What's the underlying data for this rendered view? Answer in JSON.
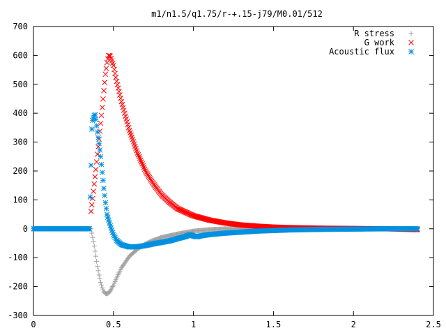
{
  "chart_data": {
    "type": "scatter",
    "title": "m1/n1.5/q1.75/r-+.15-j79/M0.01/512",
    "xlabel": "",
    "ylabel": "",
    "xlim": [
      0,
      2.5
    ],
    "ylim": [
      -300,
      700
    ],
    "x_ticks": [
      "0",
      "0.5",
      "1",
      "1.5",
      "2",
      "2.5"
    ],
    "y_ticks": [
      "-300",
      "-200",
      "-100",
      "0",
      "100",
      "200",
      "300",
      "400",
      "500",
      "600",
      "700"
    ],
    "legend_position": "top-right",
    "grid": false,
    "series": [
      {
        "name": "R stress",
        "color": "#a0a0a0",
        "marker": "plus",
        "x": [
          0.0,
          0.1,
          0.2,
          0.3,
          0.36,
          0.37,
          0.38,
          0.39,
          0.4,
          0.41,
          0.42,
          0.43,
          0.44,
          0.45,
          0.46,
          0.47,
          0.48,
          0.5,
          0.52,
          0.55,
          0.6,
          0.65,
          0.7,
          0.75,
          0.8,
          0.9,
          1.0,
          1.1,
          1.2,
          1.4,
          1.6,
          1.8,
          2.0,
          2.2,
          2.4
        ],
        "values": [
          0,
          0,
          0,
          0,
          0,
          -30,
          -60,
          -95,
          -130,
          -160,
          -185,
          -205,
          -218,
          -224,
          -225,
          -222,
          -215,
          -195,
          -170,
          -135,
          -95,
          -70,
          -52,
          -40,
          -30,
          -18,
          -8,
          -3,
          0,
          0,
          0,
          0,
          0,
          0,
          0
        ]
      },
      {
        "name": "G work",
        "color": "#ff0000",
        "marker": "x",
        "x": [
          0.36,
          0.37,
          0.38,
          0.39,
          0.4,
          0.41,
          0.42,
          0.43,
          0.44,
          0.45,
          0.46,
          0.47,
          0.48,
          0.5,
          0.52,
          0.55,
          0.6,
          0.65,
          0.7,
          0.75,
          0.8,
          0.85,
          0.9,
          1.0,
          1.1,
          1.2,
          1.3,
          1.4,
          1.5,
          1.6,
          1.8,
          2.0,
          2.2,
          2.4
        ],
        "values": [
          60,
          105,
          155,
          205,
          258,
          310,
          365,
          420,
          478,
          535,
          575,
          600,
          598,
          565,
          510,
          440,
          340,
          262,
          200,
          155,
          118,
          92,
          70,
          45,
          30,
          20,
          13,
          9,
          6,
          4,
          2,
          1,
          0,
          -3
        ]
      },
      {
        "name": "Acoustic flux",
        "color": "#0090e0",
        "marker": "star",
        "x": [
          0.0,
          0.1,
          0.2,
          0.3,
          0.35,
          0.36,
          0.365,
          0.37,
          0.38,
          0.385,
          0.39,
          0.4,
          0.41,
          0.42,
          0.43,
          0.44,
          0.45,
          0.46,
          0.48,
          0.5,
          0.52,
          0.55,
          0.6,
          0.65,
          0.7,
          0.75,
          0.8,
          0.85,
          0.9,
          0.95,
          0.98,
          1.0,
          1.02,
          1.05,
          1.1,
          1.2,
          1.4,
          1.6,
          1.8,
          2.0,
          2.2,
          2.4
        ],
        "values": [
          0,
          0,
          0,
          0,
          0,
          220,
          345,
          375,
          392,
          395,
          378,
          335,
          295,
          250,
          195,
          140,
          90,
          50,
          10,
          -20,
          -40,
          -55,
          -63,
          -62,
          -58,
          -52,
          -47,
          -42,
          -34,
          -27,
          -20,
          -25,
          -28,
          -24,
          -20,
          -15,
          -8,
          -4,
          -2,
          -1,
          0,
          0
        ]
      }
    ]
  }
}
